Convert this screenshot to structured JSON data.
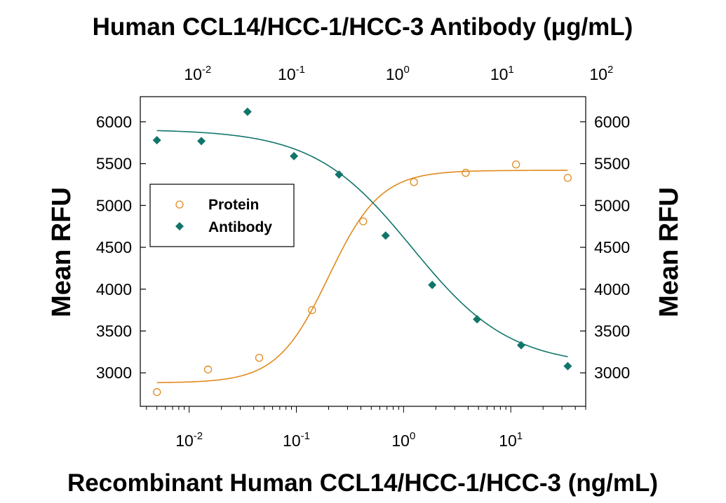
{
  "chart_data": {
    "type": "scatter",
    "title": "Human CCL14/HCC-1/HCC-3 Antibody (μg/mL)",
    "xlabel": "Recombinant Human CCL14/HCC-1/HCC-3 (ng/mL)",
    "ylabel": "Mean RFU",
    "ylabel_right": "Mean RFU",
    "x_scale": "log",
    "xlim": [
      0.0035,
      50
    ],
    "ylim": [
      2600,
      6300
    ],
    "yticks": [
      3000,
      3500,
      4000,
      4500,
      5000,
      5500,
      6000
    ],
    "bottom_ticks": [
      {
        "value": 0.01,
        "base": "10",
        "exp": "-2"
      },
      {
        "value": 0.1,
        "base": "10",
        "exp": "-1"
      },
      {
        "value": 1,
        "base": "10",
        "exp": "0"
      },
      {
        "value": 10,
        "base": "10",
        "exp": "1"
      }
    ],
    "top_ticks": [
      {
        "value": 0.012,
        "base": "10",
        "exp": "-2"
      },
      {
        "value": 0.09,
        "base": "10",
        "exp": "-1"
      },
      {
        "value": 0.88,
        "base": "10",
        "exp": "0"
      },
      {
        "value": 8.3,
        "base": "10",
        "exp": "1"
      },
      {
        "value": 70,
        "base": "10",
        "exp": "2"
      }
    ],
    "legend_position": "upper-left",
    "grid": false,
    "series": [
      {
        "name": "Protein",
        "marker": "open-circle",
        "color": "#E08A1E",
        "points": [
          {
            "x": 0.005,
            "y": 2770
          },
          {
            "x": 0.015,
            "y": 3040
          },
          {
            "x": 0.045,
            "y": 3180
          },
          {
            "x": 0.14,
            "y": 3750
          },
          {
            "x": 0.42,
            "y": 4810
          },
          {
            "x": 1.25,
            "y": 5280
          },
          {
            "x": 3.8,
            "y": 5390
          },
          {
            "x": 11.2,
            "y": 5490
          },
          {
            "x": 34,
            "y": 5330
          }
        ],
        "fit": {
          "bottom": 2880,
          "top": 5420,
          "ec50": 0.2,
          "hill": 1.8
        }
      },
      {
        "name": "Antibody",
        "marker": "filled-diamond",
        "color": "#11756A",
        "points": [
          {
            "x": 0.005,
            "y": 5780
          },
          {
            "x": 0.013,
            "y": 5770
          },
          {
            "x": 0.035,
            "y": 6120
          },
          {
            "x": 0.095,
            "y": 5590
          },
          {
            "x": 0.25,
            "y": 5370
          },
          {
            "x": 0.68,
            "y": 4640
          },
          {
            "x": 1.85,
            "y": 4050
          },
          {
            "x": 4.85,
            "y": 3640
          },
          {
            "x": 12.5,
            "y": 3330
          },
          {
            "x": 34,
            "y": 3080
          }
        ],
        "fit": {
          "bottom": 3080,
          "top": 5910,
          "ec50": 1.2,
          "hill": 0.95
        }
      }
    ]
  }
}
